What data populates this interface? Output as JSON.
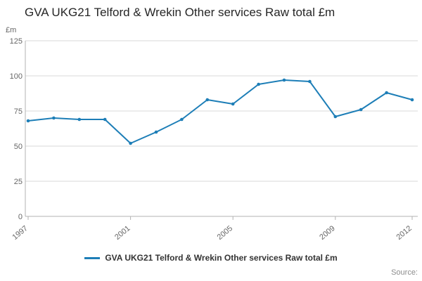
{
  "title": "GVA UKG21 Telford & Wrekin Other services Raw total £m",
  "axis_unit": "£m",
  "legend": {
    "label": "GVA UKG21 Telford & Wrekin Other services Raw total £m"
  },
  "source_label": "Source:",
  "colors": {
    "line": "#1d7eb7",
    "grid": "#d9d9d9",
    "axis": "#b3b3b3",
    "tick_text": "#666666"
  },
  "chart_data": {
    "type": "line",
    "title": "GVA UKG21 Telford & Wrekin Other services Raw total £m",
    "ylabel": "£m",
    "x": [
      1997,
      1998,
      1999,
      2000,
      2001,
      2002,
      2003,
      2004,
      2005,
      2006,
      2007,
      2008,
      2009,
      2010,
      2011,
      2012
    ],
    "values": [
      68,
      70,
      69,
      69,
      52,
      60,
      69,
      83,
      80,
      94,
      97,
      96,
      71,
      76,
      88,
      83
    ],
    "xticks": [
      1997,
      2001,
      2005,
      2009,
      2012
    ],
    "yticks": [
      0,
      25,
      50,
      75,
      100,
      125
    ],
    "ylim": [
      0,
      125
    ],
    "grid": true,
    "legend_position": "bottom",
    "series_name": "GVA UKG21 Telford & Wrekin Other services Raw total £m"
  }
}
